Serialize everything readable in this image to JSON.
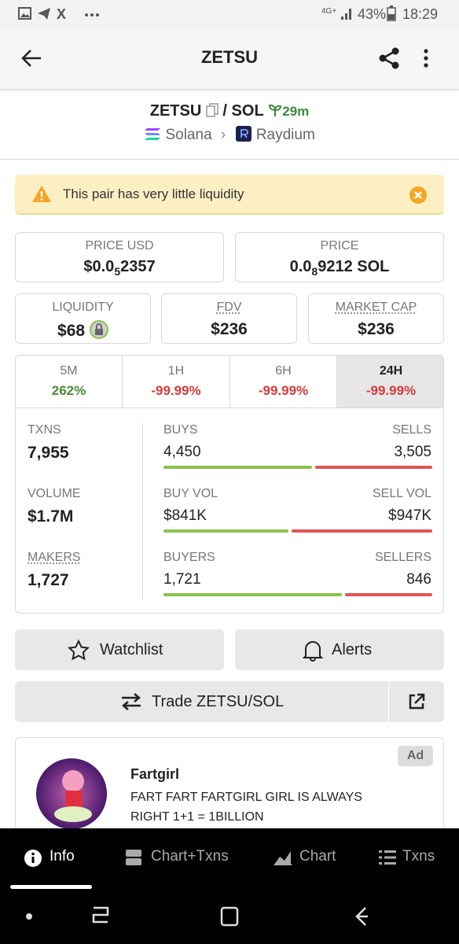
{
  "status_bar": {
    "network": "4G+",
    "battery": "43%",
    "time": "18:29"
  },
  "header": {
    "title": "ZETSU"
  },
  "pair": {
    "base": "ZETSU",
    "separator": "/",
    "quote": "SOL",
    "age": "29m",
    "chain": "Solana",
    "dex": "Raydium"
  },
  "warning": "This pair has very little liquidity",
  "price_usd": {
    "label": "PRICE USD",
    "prefix": "$0.0",
    "zeros": "5",
    "digits": "2357"
  },
  "price": {
    "label": "PRICE",
    "prefix": "0.0",
    "zeros": "8",
    "digits": "9212 SOL"
  },
  "metrics": [
    {
      "label": "LIQUIDITY",
      "value": "$68"
    },
    {
      "label": "FDV",
      "value": "$236"
    },
    {
      "label": "MARKET CAP",
      "value": "$236"
    }
  ],
  "tabs": [
    {
      "label": "5M",
      "change": "262%"
    },
    {
      "label": "1H",
      "change": "-99.99%"
    },
    {
      "label": "6H",
      "change": "-99.99%"
    },
    {
      "label": "24H",
      "change": "-99.99%"
    }
  ],
  "stats": [
    {
      "label": "TXNS",
      "value": "7,955"
    },
    {
      "label": "VOLUME",
      "value": "$1.7M"
    },
    {
      "label": "MAKERS",
      "value": "1,727"
    }
  ],
  "splits": [
    {
      "left_label": "BUYS",
      "left_value": "4,450",
      "right_label": "SELLS",
      "right_value": "3,505"
    },
    {
      "left_label": "BUY VOL",
      "left_value": "$841K",
      "right_label": "SELL VOL",
      "right_value": "$947K"
    },
    {
      "left_label": "BUYERS",
      "left_value": "1,721",
      "right_label": "SELLERS",
      "right_value": "846"
    }
  ],
  "buttons": {
    "watchlist": "Watchlist",
    "alerts": "Alerts",
    "trade": "Trade ZETSU/SOL"
  },
  "ad": {
    "badge": "Ad",
    "title": "Fartgirl",
    "text": "FART FART FARTGIRL GIRL IS ALWAYS RIGHT 1+1 = 1BILLION"
  },
  "nav": [
    "Info",
    "Chart+Txns",
    "Chart",
    "Txns"
  ]
}
